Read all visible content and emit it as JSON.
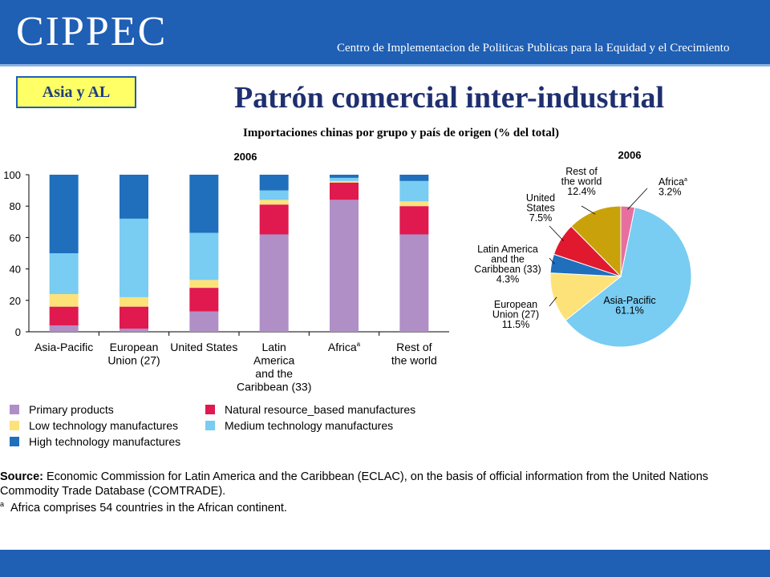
{
  "header": {
    "logo": "CIPPEC",
    "tagline": "Centro de Implementacion de Politicas Publicas para la Equidad y el Crecimiento",
    "band_color": "#1f5fb4"
  },
  "badge": {
    "label": "Asia y AL"
  },
  "title": "Patrón comercial inter-industrial",
  "subtitle": "Importaciones chinas por grupo y país de origen (% del total)",
  "chart_data": [
    {
      "type": "bar",
      "stacked": true,
      "title": "2006",
      "categories": [
        [
          "Asia-Pacific"
        ],
        [
          "European",
          "Union (27)"
        ],
        [
          "United States"
        ],
        [
          "Latin",
          "America",
          "and the",
          "Caribbean (33)"
        ],
        [
          "Africa"
        ],
        [
          "Rest of",
          "the world"
        ]
      ],
      "category_footnote": {
        "4": "a"
      },
      "ylim": [
        0,
        100
      ],
      "yticks": [
        0,
        20,
        40,
        60,
        80,
        100
      ],
      "grid": false,
      "legend_position": "bottom",
      "series": [
        {
          "name": "Primary products",
          "color": "#b08fc7",
          "values": [
            4,
            2,
            13,
            62,
            84,
            62
          ]
        },
        {
          "name": "Natural resource_based manufactures",
          "color": "#e0194f",
          "values": [
            12,
            14,
            15,
            19,
            11,
            18
          ]
        },
        {
          "name": "Low technology manufactures",
          "color": "#fde27a",
          "values": [
            8,
            6,
            5,
            3,
            1,
            3
          ]
        },
        {
          "name": "Medium technology manufactures",
          "color": "#79ccf2",
          "values": [
            26,
            50,
            30,
            6,
            2,
            13
          ]
        },
        {
          "name": "High technology manufactures",
          "color": "#1f6fbd",
          "values": [
            50,
            28,
            37,
            10,
            2,
            4
          ]
        }
      ]
    },
    {
      "type": "pie",
      "title": "2006",
      "slices": [
        {
          "name": "Africa",
          "footnote": "a",
          "value": 3.2,
          "label": "3.2%",
          "color": "#e66fa0"
        },
        {
          "name": "Asia-Pacific",
          "value": 61.1,
          "label": "61.1%",
          "color": "#79ccf2"
        },
        {
          "name": "European Union (27)",
          "value": 11.5,
          "label": "11.5%",
          "color": "#fde27a"
        },
        {
          "name": "Latin America and the Caribbean (33)",
          "value": 4.3,
          "label": "4.3%",
          "color": "#1f6fbd"
        },
        {
          "name": "United States",
          "value": 7.5,
          "label": "7.5%",
          "color": "#e0192f"
        },
        {
          "name": "Rest of the world",
          "value": 12.4,
          "label": "12.4%",
          "color": "#c9a10a"
        }
      ]
    }
  ],
  "source": {
    "label": "Source:",
    "text": "Economic Commission for Latin America and the Caribbean (ECLAC), on the basis of official information from the United Nations Commodity Trade Database (COMTRADE).",
    "footnote_mark": "a",
    "footnote": "Africa comprises 54 countries in the African continent."
  },
  "footer": {
    "band_color": "#1f5fb4"
  }
}
